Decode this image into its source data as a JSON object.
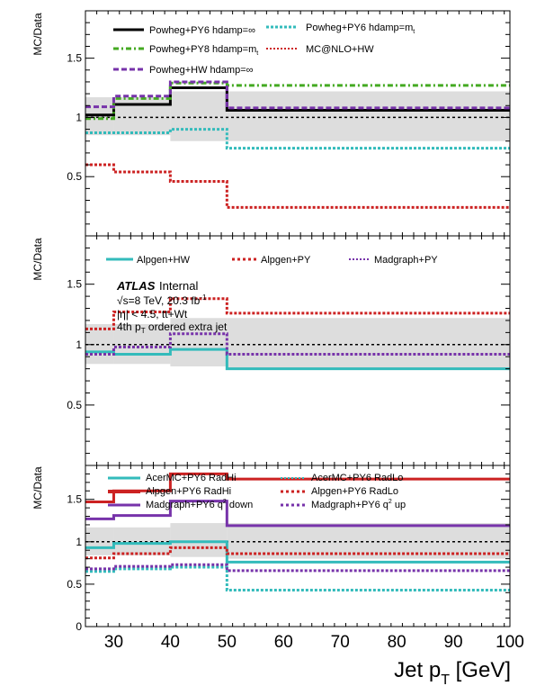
{
  "chart_data": [
    {
      "type": "line",
      "subtype": "step-histogram",
      "panel": "top",
      "ylabel": "MC/Data",
      "xlim": [
        25,
        100
      ],
      "ylim": [
        0,
        1.9
      ],
      "yticks": [
        "0.5",
        "1",
        "1.5"
      ],
      "bin_edges": [
        25,
        30,
        40,
        50,
        100
      ],
      "uncertainty_band": {
        "lower": [
          0.85,
          0.85,
          0.8,
          0.8
        ],
        "upper": [
          1.17,
          1.17,
          1.22,
          1.22
        ],
        "color": "#dddddd"
      },
      "reference_line": 1.0,
      "series": [
        {
          "name": "Powheg+PY6 hdamp=∞",
          "values": [
            1.02,
            1.11,
            1.25,
            1.06
          ],
          "color": "#000000",
          "style": "solid"
        },
        {
          "name": "Powheg+PY6 hdamp=m",
          "sub": "t",
          "values": [
            0.87,
            0.87,
            0.9,
            0.74
          ],
          "color": "#33bbbb",
          "style": "dotted"
        },
        {
          "name": "Powheg+PY8 hdamp=m",
          "sub": "t",
          "values": [
            0.99,
            1.16,
            1.29,
            1.27
          ],
          "color": "#44aa22",
          "style": "dashdot"
        },
        {
          "name": "MC@NLO+HW",
          "values": [
            0.6,
            0.54,
            0.46,
            0.24
          ],
          "color": "#cc2222",
          "style": "dotted"
        },
        {
          "name": "Powheg+HW hdamp=∞",
          "values": [
            1.09,
            1.18,
            1.3,
            1.08
          ],
          "color": "#7733aa",
          "style": "dashed"
        }
      ]
    },
    {
      "type": "line",
      "subtype": "step-histogram",
      "panel": "middle",
      "ylabel": "MC/Data",
      "xlim": [
        25,
        100
      ],
      "ylim": [
        0,
        1.9
      ],
      "yticks": [
        "0.5",
        "1",
        "1.5"
      ],
      "bin_edges": [
        25,
        30,
        40,
        50,
        100
      ],
      "uncertainty_band": {
        "lower": [
          0.84,
          0.84,
          0.82,
          0.8
        ],
        "upper": [
          1.17,
          1.17,
          1.22,
          1.22
        ],
        "color": "#dddddd"
      },
      "reference_line": 1.0,
      "series": [
        {
          "name": "Alpgen+HW",
          "values": [
            0.94,
            0.92,
            0.96,
            0.8
          ],
          "color": "#33bbbb",
          "style": "solid"
        },
        {
          "name": "Alpgen+PY",
          "values": [
            1.13,
            1.27,
            1.38,
            1.26
          ],
          "color": "#cc2222",
          "style": "dotted"
        },
        {
          "name": "Madgraph+PY",
          "values": [
            0.92,
            0.98,
            1.09,
            0.92
          ],
          "color": "#7733aa",
          "style": "dotted"
        }
      ],
      "annotation": {
        "atlas": "ATLAS",
        "status": "Internal",
        "energy": "√s=8 TeV, 20.3 fb",
        "lumi_sup": "-1",
        "eta": "|η| < 4.5, tt+Wt",
        "jet_prefix": "4th p",
        "jet_sub": "T",
        "jet_suffix": " ordered extra jet"
      }
    },
    {
      "type": "line",
      "subtype": "step-histogram",
      "panel": "bottom",
      "ylabel": "MC/Data",
      "xlabel_main": "Jet p",
      "xlabel_sub": "T",
      "xlabel_unit": " [GeV]",
      "xlim": [
        25,
        100
      ],
      "xticks": [
        30,
        40,
        50,
        60,
        70,
        80,
        90,
        100
      ],
      "ylim": [
        0,
        1.9
      ],
      "yticks": [
        "0",
        "0.5",
        "1",
        "1.5"
      ],
      "bin_edges": [
        25,
        30,
        40,
        50,
        100
      ],
      "uncertainty_band": {
        "lower": [
          0.84,
          0.84,
          0.82,
          0.8
        ],
        "upper": [
          1.17,
          1.17,
          1.22,
          1.22
        ],
        "color": "#dddddd"
      },
      "reference_line": 1.0,
      "series": [
        {
          "name": "AcerMC+PY6 RadHi",
          "values": [
            0.93,
            0.98,
            1.0,
            0.76
          ],
          "color": "#33bbbb",
          "style": "solid"
        },
        {
          "name": "AcerMC+PY6 RadLo",
          "values": [
            0.65,
            0.68,
            0.7,
            0.43
          ],
          "color": "#33bbbb",
          "style": "dotted"
        },
        {
          "name": "Alpgen+PY6 RadHi",
          "values": [
            1.47,
            1.6,
            1.8,
            1.74
          ],
          "color": "#cc2222",
          "style": "solid"
        },
        {
          "name": "Alpgen+PY6 RadLo",
          "values": [
            0.81,
            0.86,
            0.93,
            0.86
          ],
          "color": "#cc2222",
          "style": "dotted"
        },
        {
          "name": "Madgraph+PY6 q",
          "sup": "2",
          "suffix": " down",
          "values": [
            1.27,
            1.31,
            1.48,
            1.19
          ],
          "color": "#7733aa",
          "style": "solid"
        },
        {
          "name": "Madgraph+PY6 q",
          "sup": "2",
          "suffix": " up",
          "values": [
            0.68,
            0.71,
            0.73,
            0.66
          ],
          "color": "#7733aa",
          "style": "dotted"
        }
      ]
    }
  ]
}
